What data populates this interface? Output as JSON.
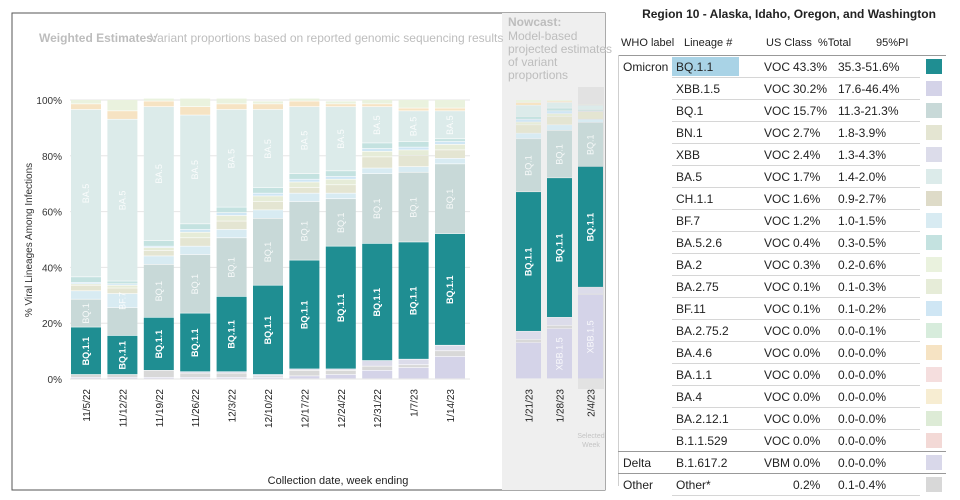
{
  "chart_data": {
    "type": "stacked-bar",
    "title": "Weighted Estimates:",
    "subtitle": "Variant proportions based on reported genomic sequencing results",
    "nowcast_title": "Nowcast:",
    "nowcast_subtitle": [
      "Model-based",
      "projected estimates",
      "of variant",
      "proportions"
    ],
    "ylabel": "% Viral Lineages Among Infections",
    "xlabel": "Collection date, week ending",
    "ylim": [
      0,
      100
    ],
    "yticks": [
      "0%",
      "20%",
      "40%",
      "60%",
      "80%",
      "100%"
    ],
    "selected_week_label": [
      "Selected",
      "Week"
    ],
    "weighted": {
      "categories": [
        "11/5/22",
        "11/12/22",
        "11/19/22",
        "11/26/22",
        "12/3/22",
        "12/10/22",
        "12/17/22",
        "12/24/22",
        "12/31/22",
        "1/7/23",
        "1/14/23"
      ],
      "series": [
        {
          "name": "XBB.1.5",
          "values": [
            0.5,
            0.5,
            0.5,
            0.5,
            0.5,
            0.5,
            1,
            1.5,
            3,
            4,
            8
          ]
        },
        {
          "name": "Other",
          "values": [
            1,
            1,
            2.5,
            1.5,
            1.5,
            0.5,
            2,
            1.5,
            1.5,
            1,
            2
          ]
        },
        {
          "name": "XBB",
          "values": [
            0,
            0,
            0,
            0.5,
            0.5,
            0.5,
            0.5,
            0.5,
            2,
            2,
            2
          ]
        },
        {
          "name": "BQ.1.1",
          "values": [
            17,
            14,
            19,
            21,
            27,
            32,
            39,
            44,
            42,
            42,
            40
          ]
        },
        {
          "name": "BQ.1",
          "values": [
            10,
            10,
            19,
            21,
            21,
            24,
            21,
            17,
            25,
            25,
            25
          ]
        },
        {
          "name": "BF.7",
          "values": [
            3,
            5,
            3,
            3,
            3,
            3,
            3,
            2,
            2,
            2,
            2
          ]
        },
        {
          "name": "BN.1",
          "values": [
            2,
            2,
            2,
            3,
            3,
            3,
            2,
            3,
            4,
            4,
            3
          ]
        },
        {
          "name": "BA.2.75",
          "values": [
            0.5,
            1,
            1,
            2,
            2,
            2,
            2,
            2,
            2,
            2,
            2
          ]
        },
        {
          "name": "BF.11",
          "values": [
            0.5,
            0.5,
            0.5,
            1,
            1,
            1,
            1,
            1,
            1,
            1,
            1
          ]
        },
        {
          "name": "BA.5.2.6",
          "values": [
            2,
            1,
            2,
            2,
            2,
            2,
            2,
            2,
            2,
            2,
            1
          ]
        },
        {
          "name": "BA.5",
          "values": [
            60,
            58,
            48,
            39,
            35,
            28,
            24,
            23,
            13,
            11,
            10
          ]
        },
        {
          "name": "BA.4.6",
          "values": [
            2,
            3,
            2,
            3,
            2,
            2,
            2,
            1,
            1,
            1,
            1
          ]
        },
        {
          "name": "BA.2",
          "values": [
            1.5,
            4,
            1,
            3,
            2,
            1,
            1,
            1,
            1.5,
            3,
            3
          ]
        }
      ],
      "bar_labels": [
        [
          "BQ.1.1",
          "BQ.1",
          "BA.5"
        ],
        [
          "BQ.1.1",
          "BF.7",
          "BA.5"
        ],
        [
          "BQ.1.1",
          "BQ.1",
          "BA.5"
        ],
        [
          "BQ.1.1",
          "BQ.1",
          "BA.5"
        ],
        [
          "BQ.1.1",
          "BQ.1",
          "BA.5"
        ],
        [
          "BQ.1.1",
          "BQ.1",
          "BA.5"
        ],
        [
          "BQ.1.1",
          "BQ.1",
          "BA.5"
        ],
        [
          "BQ.1.1",
          "BQ.1",
          "BA.5"
        ],
        [
          "BQ.1.1",
          "BQ.1",
          "BA.5"
        ],
        [
          "BQ.1.1",
          "BQ.1",
          "BA.5"
        ],
        [
          "BQ.1.1",
          "BQ.1",
          "BA.5"
        ]
      ]
    },
    "nowcast": {
      "categories": [
        "1/21/23",
        "1/28/23",
        "2/4/23"
      ],
      "series": [
        {
          "name": "XBB.1.5",
          "values": [
            13,
            18,
            30.2
          ]
        },
        {
          "name": "Other",
          "values": [
            1,
            1,
            0.2
          ]
        },
        {
          "name": "XBB",
          "values": [
            3,
            3,
            2.4
          ]
        },
        {
          "name": "BQ.1.1",
          "values": [
            50,
            50,
            43.3
          ]
        },
        {
          "name": "BQ.1",
          "values": [
            19,
            17,
            15.7
          ]
        },
        {
          "name": "BF.7",
          "values": [
            2,
            2,
            1.2
          ]
        },
        {
          "name": "BN.1",
          "values": [
            3,
            3,
            2.7
          ]
        },
        {
          "name": "BA.2.75",
          "values": [
            1,
            1,
            0.1
          ]
        },
        {
          "name": "BF.11",
          "values": [
            1,
            1,
            0.1
          ]
        },
        {
          "name": "BA.5.2.6",
          "values": [
            1,
            1,
            0.4
          ]
        },
        {
          "name": "BA.5",
          "values": [
            4,
            2,
            1.7
          ]
        },
        {
          "name": "BA.4.6",
          "values": [
            1,
            0.5,
            0
          ]
        },
        {
          "name": "BA.2",
          "values": [
            1,
            0.5,
            0.3
          ]
        }
      ],
      "bar_labels": [
        [
          "BQ.1.1",
          "BQ.1",
          ""
        ],
        [
          "BQ.1.1",
          "BQ.1",
          "XBB.1.5"
        ],
        [
          "BQ.1.1",
          "BQ.1",
          "XBB.1.5"
        ]
      ],
      "selected_index": 2
    }
  },
  "colors": {
    "BQ.1.1": "#1f8e92",
    "BQ.1": "#c8d9d8",
    "BA.5": "#dcebea",
    "XBB.1.5": "#d4d3e8",
    "XBB": "#dcdcea",
    "BN.1": "#e4e5d2",
    "BF.7": "#d8ebf2",
    "BA.5.2.6": "#c4e2e0",
    "BA.2": "#eaf2de",
    "BA.2.75": "#e6ecd8",
    "BF.11": "#cfe6f4",
    "BA.4.6": "#f6e3c3",
    "Other": "#d8d8d8"
  },
  "table": {
    "title": "Region 10 - Alaska, Idaho, Oregon, and Washington",
    "headers": {
      "who": "WHO label",
      "lineage": "Lineage #",
      "class": "US Class",
      "total": "%Total",
      "pi": "95%PI"
    },
    "rows": [
      {
        "who": "Omicron",
        "lineage": "BQ.1.1",
        "class": "VOC",
        "total": "43.3%",
        "pi": "35.3-51.6%",
        "color": "#1f8e92",
        "highlight": true
      },
      {
        "who": "",
        "lineage": "XBB.1.5",
        "class": "VOC",
        "total": "30.2%",
        "pi": "17.6-46.4%",
        "color": "#d4d3e8"
      },
      {
        "who": "",
        "lineage": "BQ.1",
        "class": "VOC",
        "total": "15.7%",
        "pi": "11.3-21.3%",
        "color": "#c8d9d8"
      },
      {
        "who": "",
        "lineage": "BN.1",
        "class": "VOC",
        "total": "2.7%",
        "pi": "1.8-3.9%",
        "color": "#e4e5d2"
      },
      {
        "who": "",
        "lineage": "XBB",
        "class": "VOC",
        "total": "2.4%",
        "pi": "1.3-4.3%",
        "color": "#dcdcea"
      },
      {
        "who": "",
        "lineage": "BA.5",
        "class": "VOC",
        "total": "1.7%",
        "pi": "1.4-2.0%",
        "color": "#dcebea"
      },
      {
        "who": "",
        "lineage": "CH.1.1",
        "class": "VOC",
        "total": "1.6%",
        "pi": "0.9-2.7%",
        "color": "#dedbc8"
      },
      {
        "who": "",
        "lineage": "BF.7",
        "class": "VOC",
        "total": "1.2%",
        "pi": "1.0-1.5%",
        "color": "#d8ebf2"
      },
      {
        "who": "",
        "lineage": "BA.5.2.6",
        "class": "VOC",
        "total": "0.4%",
        "pi": "0.3-0.5%",
        "color": "#c4e2e0"
      },
      {
        "who": "",
        "lineage": "BA.2",
        "class": "VOC",
        "total": "0.3%",
        "pi": "0.2-0.6%",
        "color": "#eaf2de"
      },
      {
        "who": "",
        "lineage": "BA.2.75",
        "class": "VOC",
        "total": "0.1%",
        "pi": "0.1-0.3%",
        "color": "#e6ecd8"
      },
      {
        "who": "",
        "lineage": "BF.11",
        "class": "VOC",
        "total": "0.1%",
        "pi": "0.1-0.2%",
        "color": "#cfe6f4"
      },
      {
        "who": "",
        "lineage": "BA.2.75.2",
        "class": "VOC",
        "total": "0.0%",
        "pi": "0.0-0.1%",
        "color": "#d7ecdc"
      },
      {
        "who": "",
        "lineage": "BA.4.6",
        "class": "VOC",
        "total": "0.0%",
        "pi": "0.0-0.0%",
        "color": "#f6e3c3"
      },
      {
        "who": "",
        "lineage": "BA.1.1",
        "class": "VOC",
        "total": "0.0%",
        "pi": "0.0-0.0%",
        "color": "#f5dede"
      },
      {
        "who": "",
        "lineage": "BA.4",
        "class": "VOC",
        "total": "0.0%",
        "pi": "0.0-0.0%",
        "color": "#f7edd2"
      },
      {
        "who": "",
        "lineage": "BA.2.12.1",
        "class": "VOC",
        "total": "0.0%",
        "pi": "0.0-0.0%",
        "color": "#ddebd6"
      },
      {
        "who": "",
        "lineage": "B.1.1.529",
        "class": "VOC",
        "total": "0.0%",
        "pi": "0.0-0.0%",
        "color": "#f3d9d6"
      },
      {
        "who": "Delta",
        "lineage": "B.1.617.2",
        "class": "VBM",
        "total": "0.0%",
        "pi": "0.0-0.0%",
        "color": "#d9d8ea"
      },
      {
        "who": "Other",
        "lineage": "Other*",
        "class": "",
        "total": "0.2%",
        "pi": "0.1-0.4%",
        "color": "#d8d8d8"
      }
    ]
  }
}
